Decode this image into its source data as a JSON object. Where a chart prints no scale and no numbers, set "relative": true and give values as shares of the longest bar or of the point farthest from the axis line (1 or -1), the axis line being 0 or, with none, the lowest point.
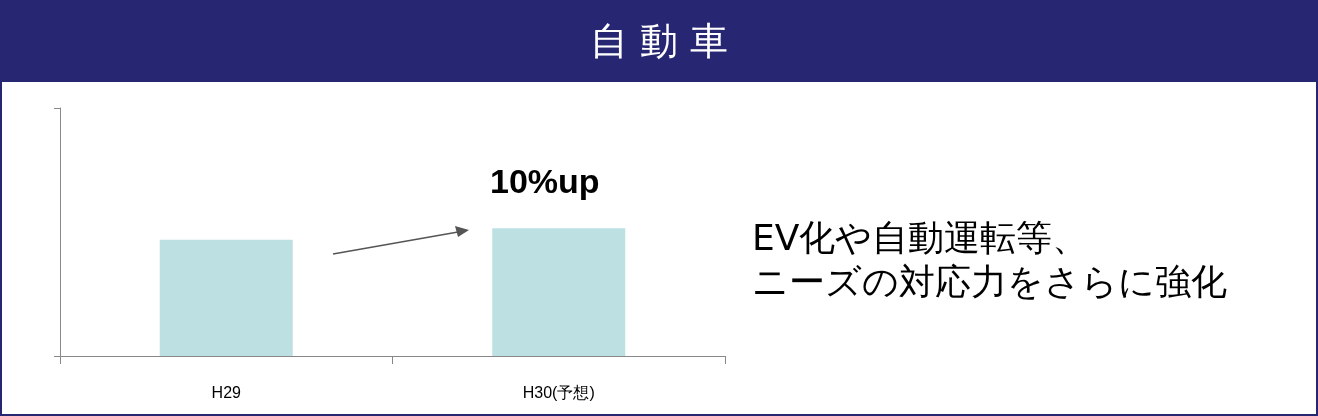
{
  "chart_data": {
    "type": "bar",
    "title": "自 動 車",
    "categories": [
      "H29",
      "H30(予想)"
    ],
    "values": [
      0.91,
      1
    ],
    "color": "#bde0e3",
    "relative": true,
    "grid": false,
    "annotations": [
      "10%up",
      "EV化や自動運転等、",
      "ニーズの対応力をさらに強化"
    ]
  }
}
